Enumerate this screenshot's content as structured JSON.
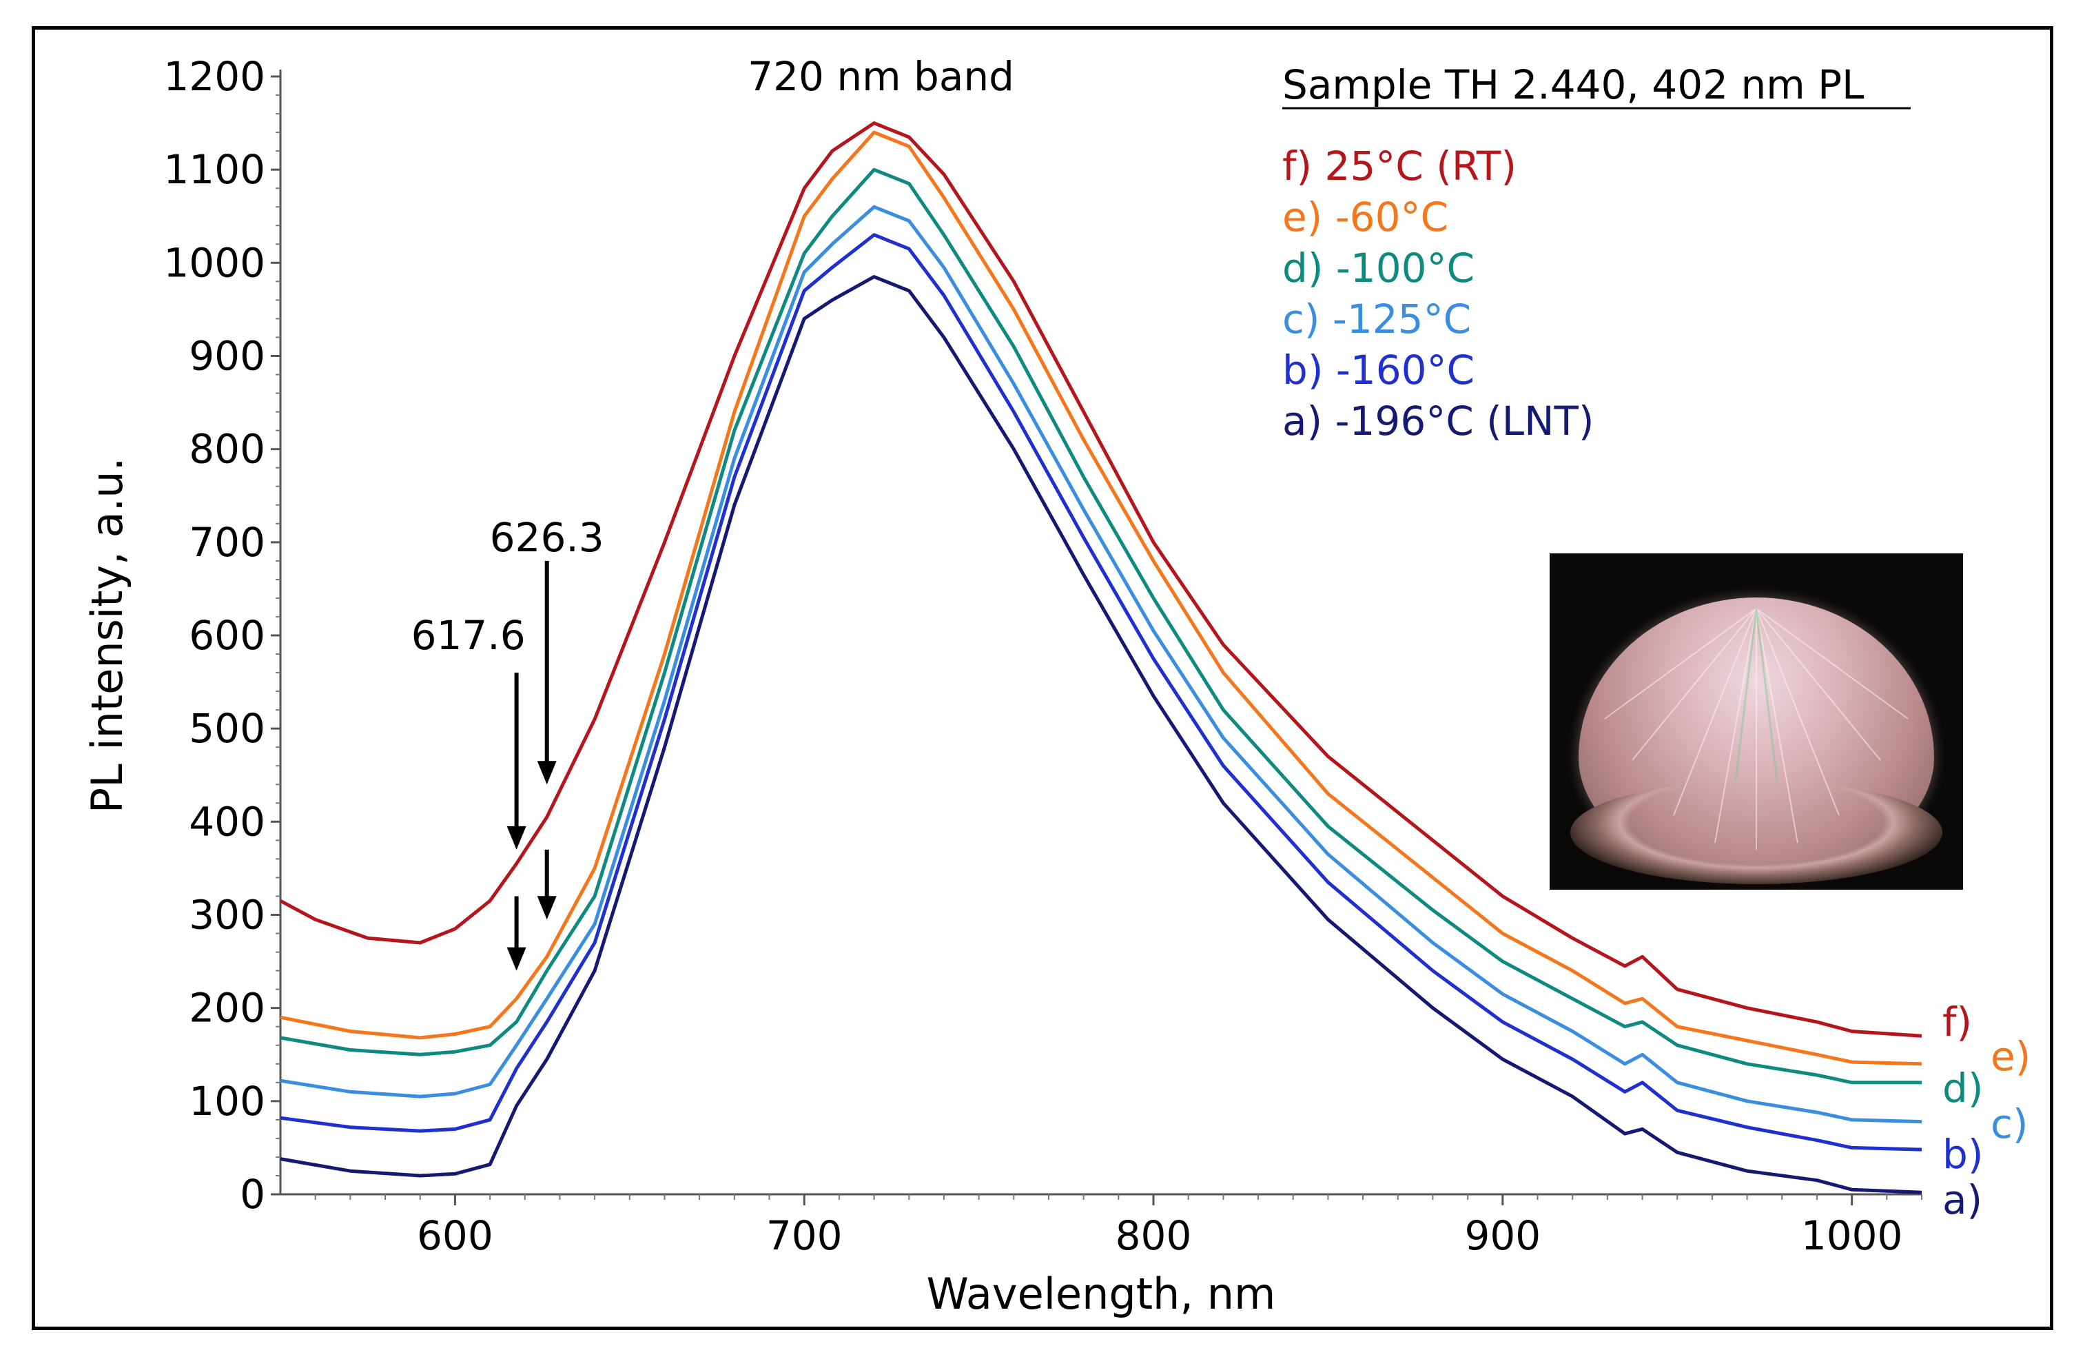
{
  "chart_data": {
    "type": "line",
    "title": "",
    "xlabel": "Wavelength, nm",
    "ylabel": "PL intensity, a.u.",
    "xlim": [
      550,
      1020
    ],
    "ylim": [
      0,
      1200
    ],
    "xticks": [
      600,
      700,
      800,
      900,
      1000
    ],
    "yticks": [
      0,
      100,
      200,
      300,
      400,
      500,
      600,
      700,
      800,
      900,
      1000,
      1100,
      1200
    ],
    "grid": false,
    "legend": {
      "title": "Sample TH 2.440, 402 nm PL",
      "placement": "top-right",
      "entries": [
        {
          "label": "f) 25°C (RT)",
          "color": "#b5161c"
        },
        {
          "label": "e) -60°C",
          "color": "#f5761b"
        },
        {
          "label": "d) -100°C",
          "color": "#0e8a80"
        },
        {
          "label": "c) -125°C",
          "color": "#3a8ee0"
        },
        {
          "label": "b) -160°C",
          "color": "#1f2fd0"
        },
        {
          "label": "a) -196°C (LNT)",
          "color": "#141a72"
        }
      ]
    },
    "series": [
      {
        "name": "f)",
        "color": "#b5161c",
        "x": [
          550,
          560,
          575,
          590,
          600,
          610,
          617.6,
          626.3,
          640,
          660,
          680,
          700,
          708,
          720,
          730,
          740,
          760,
          780,
          800,
          820,
          850,
          880,
          900,
          920,
          935,
          940,
          950,
          970,
          990,
          1000,
          1020
        ],
        "y": [
          315,
          295,
          275,
          270,
          285,
          315,
          355,
          405,
          510,
          700,
          900,
          1080,
          1120,
          1150,
          1135,
          1095,
          980,
          840,
          700,
          590,
          470,
          380,
          320,
          275,
          245,
          255,
          220,
          200,
          185,
          175,
          170
        ]
      },
      {
        "name": "e)",
        "color": "#f5761b",
        "x": [
          550,
          570,
          590,
          600,
          610,
          617.6,
          626.3,
          640,
          660,
          680,
          700,
          708,
          720,
          730,
          740,
          760,
          780,
          800,
          820,
          850,
          880,
          900,
          920,
          935,
          940,
          950,
          970,
          990,
          1000,
          1020
        ],
        "y": [
          190,
          175,
          168,
          172,
          180,
          210,
          255,
          350,
          580,
          840,
          1050,
          1090,
          1140,
          1125,
          1070,
          950,
          810,
          680,
          560,
          430,
          340,
          280,
          240,
          205,
          210,
          180,
          165,
          150,
          142,
          140
        ]
      },
      {
        "name": "d)",
        "color": "#0e8a80",
        "x": [
          550,
          570,
          590,
          600,
          610,
          617.6,
          626.3,
          640,
          660,
          680,
          700,
          708,
          720,
          730,
          740,
          760,
          780,
          800,
          820,
          850,
          880,
          900,
          920,
          935,
          940,
          950,
          970,
          990,
          1000,
          1020
        ],
        "y": [
          168,
          155,
          150,
          153,
          160,
          185,
          240,
          320,
          560,
          820,
          1010,
          1050,
          1100,
          1085,
          1030,
          910,
          770,
          640,
          520,
          395,
          305,
          250,
          210,
          180,
          185,
          160,
          140,
          128,
          120,
          120
        ]
      },
      {
        "name": "c)",
        "color": "#3a8ee0",
        "x": [
          550,
          570,
          590,
          600,
          610,
          617.6,
          626.3,
          640,
          660,
          680,
          700,
          708,
          720,
          730,
          740,
          760,
          780,
          800,
          820,
          850,
          880,
          900,
          920,
          935,
          940,
          950,
          970,
          990,
          1000,
          1020
        ],
        "y": [
          122,
          110,
          105,
          108,
          118,
          160,
          210,
          290,
          530,
          790,
          990,
          1020,
          1060,
          1045,
          995,
          870,
          735,
          605,
          490,
          365,
          270,
          215,
          175,
          140,
          150,
          120,
          100,
          88,
          80,
          78
        ]
      },
      {
        "name": "b)",
        "color": "#1f2fd0",
        "x": [
          550,
          570,
          590,
          600,
          610,
          617.6,
          626.3,
          640,
          660,
          680,
          700,
          708,
          720,
          730,
          740,
          760,
          780,
          800,
          820,
          850,
          880,
          900,
          920,
          935,
          940,
          950,
          970,
          990,
          1000,
          1020
        ],
        "y": [
          82,
          72,
          68,
          70,
          80,
          135,
          185,
          270,
          510,
          770,
          970,
          995,
          1030,
          1015,
          965,
          840,
          705,
          575,
          460,
          335,
          240,
          185,
          145,
          110,
          120,
          90,
          72,
          58,
          50,
          48
        ]
      },
      {
        "name": "a)",
        "color": "#141a72",
        "x": [
          550,
          570,
          590,
          600,
          610,
          617.6,
          626.3,
          640,
          660,
          680,
          700,
          708,
          720,
          730,
          740,
          760,
          780,
          800,
          820,
          850,
          880,
          900,
          920,
          935,
          940,
          950,
          970,
          990,
          1000,
          1020
        ],
        "y": [
          38,
          25,
          20,
          22,
          32,
          95,
          145,
          240,
          480,
          740,
          940,
          960,
          985,
          970,
          920,
          800,
          665,
          535,
          420,
          295,
          200,
          145,
          105,
          65,
          70,
          45,
          25,
          15,
          5,
          2
        ]
      }
    ],
    "annotations": [
      {
        "text": "720 nm band",
        "x": 720,
        "y": 1200
      },
      {
        "text": "617.6",
        "x": 617.6,
        "y": 345
      },
      {
        "text": "626.3",
        "x": 626.3,
        "y": 400
      }
    ],
    "arrows": [
      {
        "x": 617.6,
        "y_from": 560,
        "y_to": 370
      },
      {
        "x": 626.3,
        "y_from": 680,
        "y_to": 440
      },
      {
        "x": 617.6,
        "y_from": 320,
        "y_to": 240
      },
      {
        "x": 626.3,
        "y_from": 370,
        "y_to": 295
      }
    ],
    "end_labels": [
      {
        "text": "f)",
        "color": "#b5161c"
      },
      {
        "text": "e)",
        "color": "#f5761b"
      },
      {
        "text": "d)",
        "color": "#0e8a80"
      },
      {
        "text": "c)",
        "color": "#3a8ee0"
      },
      {
        "text": "b)",
        "color": "#1f2fd0"
      },
      {
        "text": "a)",
        "color": "#141a72"
      }
    ]
  }
}
